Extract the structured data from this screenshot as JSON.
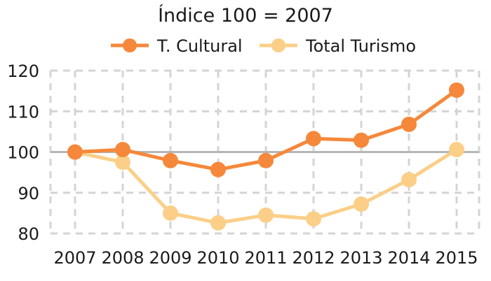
{
  "chart_data": {
    "type": "line",
    "title": "Índice 100 = 2007",
    "xlabel": "",
    "ylabel": "",
    "categories": [
      "2007",
      "2008",
      "2009",
      "2010",
      "2011",
      "2012",
      "2013",
      "2014",
      "2015"
    ],
    "series": [
      {
        "name": "T. Cultural",
        "color": "#f5883a",
        "values": [
          100,
          100.6,
          97.9,
          95.7,
          97.9,
          103.3,
          102.9,
          106.8,
          115.2
        ]
      },
      {
        "name": "Total Turismo",
        "color": "#fbcf88",
        "values": [
          100,
          97.5,
          85.0,
          82.6,
          84.5,
          83.6,
          87.2,
          93.2,
          100.6
        ]
      }
    ],
    "ylim": [
      80,
      120
    ],
    "yticks": [
      80,
      90,
      100,
      110,
      120
    ],
    "yticklabels": [
      "80",
      "90",
      "100",
      "110",
      "120"
    ],
    "reference_line": 100,
    "grid": true,
    "legend_position": "top"
  }
}
